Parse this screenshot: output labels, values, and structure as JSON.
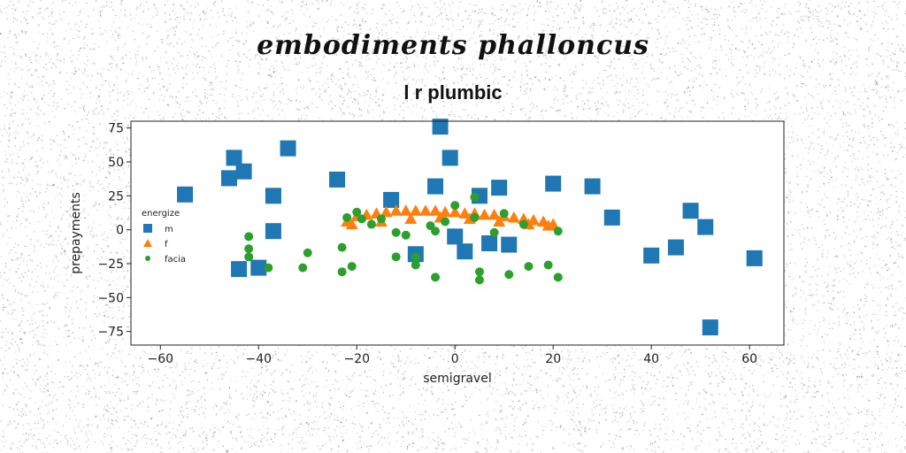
{
  "page": {
    "title": "embodiments phalloncus",
    "subtitle": "l r plumbic"
  },
  "chart_data": {
    "type": "scatter",
    "title": "l r plumbic",
    "xlabel": "semigravel",
    "ylabel": "prepayments",
    "xlim": [
      -66,
      67
    ],
    "ylim": [
      -85,
      80
    ],
    "xticks": [
      -60,
      -40,
      -20,
      0,
      20,
      40,
      60
    ],
    "yticks": [
      -75,
      -50,
      -25,
      0,
      25,
      50,
      75
    ],
    "grid": false,
    "legend": {
      "title": "energize",
      "position": "left"
    },
    "colors": {
      "m": "#1f77b4",
      "f": "#ff7f0e",
      "facia": "#2ca02c"
    },
    "series": [
      {
        "name": "m",
        "marker": "square",
        "points": [
          [
            -3,
            76
          ],
          [
            -45,
            53
          ],
          [
            -43,
            43
          ],
          [
            -46,
            38
          ],
          [
            -34,
            60
          ],
          [
            -24,
            37
          ],
          [
            -55,
            26
          ],
          [
            -37,
            25
          ],
          [
            -37,
            -1
          ],
          [
            -13,
            22
          ],
          [
            -4,
            32
          ],
          [
            -1,
            53
          ],
          [
            5,
            25
          ],
          [
            9,
            31
          ],
          [
            20,
            34
          ],
          [
            28,
            32
          ],
          [
            32,
            9
          ],
          [
            0,
            -5
          ],
          [
            2,
            -16
          ],
          [
            7,
            -10
          ],
          [
            11,
            -11
          ],
          [
            -8,
            -18
          ],
          [
            -44,
            -29
          ],
          [
            -40,
            -28
          ],
          [
            40,
            -19
          ],
          [
            45,
            -13
          ],
          [
            48,
            14
          ],
          [
            51,
            2
          ],
          [
            61,
            -21
          ],
          [
            52,
            -72
          ]
        ]
      },
      {
        "name": "f",
        "marker": "triangle",
        "points": [
          [
            -22,
            6
          ],
          [
            -20,
            10
          ],
          [
            -18,
            11
          ],
          [
            -16,
            12
          ],
          [
            -14,
            13
          ],
          [
            -12,
            14
          ],
          [
            -10,
            14
          ],
          [
            -8,
            14
          ],
          [
            -6,
            14
          ],
          [
            -4,
            14
          ],
          [
            -2,
            13
          ],
          [
            0,
            13
          ],
          [
            2,
            12
          ],
          [
            4,
            12
          ],
          [
            6,
            11
          ],
          [
            8,
            11
          ],
          [
            10,
            10
          ],
          [
            12,
            9
          ],
          [
            14,
            8
          ],
          [
            16,
            7
          ],
          [
            18,
            6
          ],
          [
            20,
            4
          ],
          [
            -21,
            4
          ],
          [
            -15,
            6
          ],
          [
            -9,
            8
          ],
          [
            -3,
            9
          ],
          [
            3,
            8
          ],
          [
            9,
            6
          ],
          [
            15,
            4
          ],
          [
            19,
            3
          ]
        ]
      },
      {
        "name": "facia",
        "marker": "circle",
        "points": [
          [
            -20,
            13
          ],
          [
            -22,
            9
          ],
          [
            -19,
            8
          ],
          [
            -17,
            4
          ],
          [
            -15,
            8
          ],
          [
            -12,
            -2
          ],
          [
            -10,
            -4
          ],
          [
            -5,
            3
          ],
          [
            -4,
            -1
          ],
          [
            0,
            18
          ],
          [
            4,
            24
          ],
          [
            4,
            9
          ],
          [
            8,
            -2
          ],
          [
            10,
            12
          ],
          [
            14,
            4
          ],
          [
            21,
            -1
          ],
          [
            -42,
            -5
          ],
          [
            -42,
            -14
          ],
          [
            -42,
            -20
          ],
          [
            -38,
            -28
          ],
          [
            -30,
            -17
          ],
          [
            -31,
            -28
          ],
          [
            -23,
            -31
          ],
          [
            -23,
            -13
          ],
          [
            -21,
            -27
          ],
          [
            -12,
            -20
          ],
          [
            -8,
            -20
          ],
          [
            -8,
            -26
          ],
          [
            -4,
            -35
          ],
          [
            5,
            -31
          ],
          [
            5,
            -37
          ],
          [
            11,
            -33
          ],
          [
            15,
            -27
          ],
          [
            19,
            -26
          ],
          [
            21,
            -35
          ],
          [
            -2,
            6
          ]
        ]
      }
    ]
  }
}
